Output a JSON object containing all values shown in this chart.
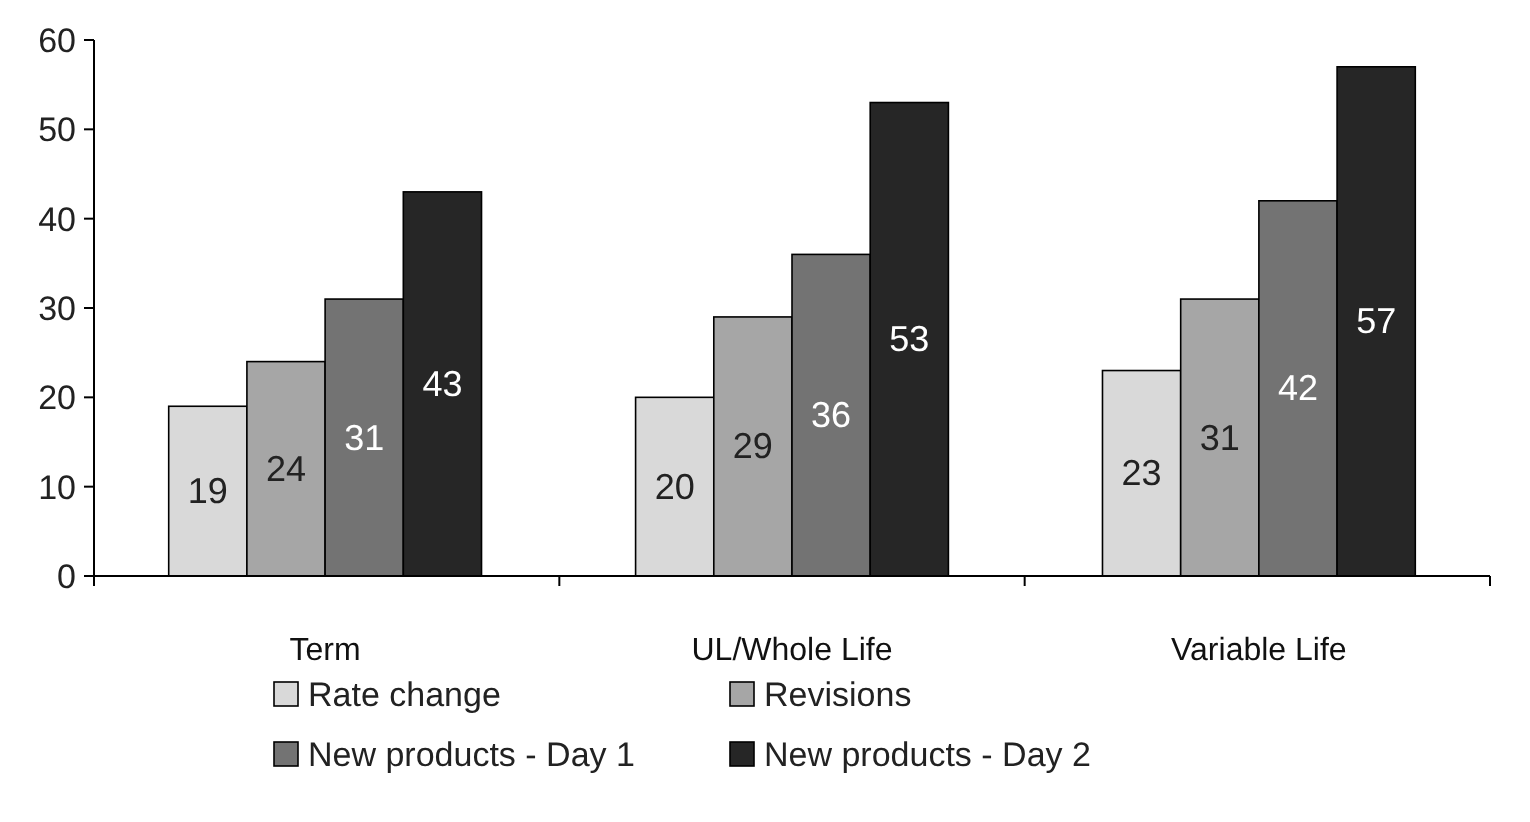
{
  "chart_data": {
    "type": "bar",
    "categories": [
      "Term",
      "UL/Whole Life",
      "Variable Life"
    ],
    "series": [
      {
        "name": "Rate change",
        "color": "#d9d9d9",
        "values": [
          19,
          20,
          23
        ]
      },
      {
        "name": "Revisions",
        "color": "#a6a6a6",
        "values": [
          24,
          29,
          31
        ]
      },
      {
        "name": "New products - Day 1",
        "color": "#737373",
        "values": [
          31,
          36,
          42
        ]
      },
      {
        "name": "New products - Day 2",
        "color": "#262626",
        "values": [
          43,
          53,
          57
        ]
      }
    ],
    "ylim": [
      0,
      60
    ],
    "yticks": [
      0,
      10,
      20,
      30,
      40,
      50,
      60
    ],
    "data_labels": true,
    "legend": "bottom",
    "grid": false
  }
}
